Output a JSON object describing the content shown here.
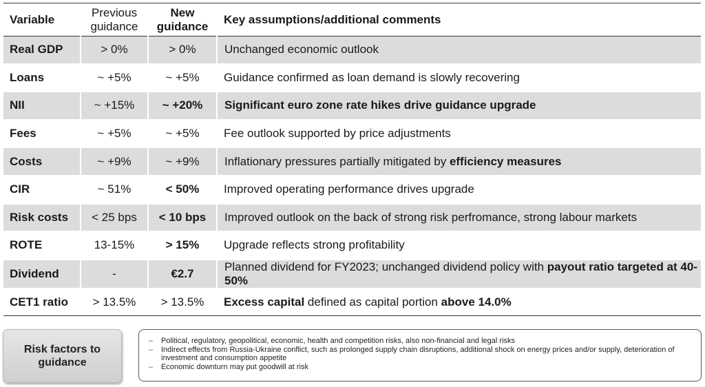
{
  "headers": {
    "variable": "Variable",
    "previous": "Previous guidance",
    "new": "New guidance",
    "comments": "Key assumptions/additional comments"
  },
  "rows": [
    {
      "variable": "Real GDP",
      "previous": "> 0%",
      "new": "> 0%",
      "comment_parts": [
        "Unchanged economic outlook"
      ]
    },
    {
      "variable": "Loans",
      "previous": "~ +5%",
      "new": "~ +5%",
      "comment_parts": [
        "Guidance confirmed as loan demand is slowly recovering"
      ]
    },
    {
      "variable": "NII",
      "previous": "~ +15%",
      "new": "~ +20%",
      "comment_parts": [
        "Significant euro zone rate hikes drive guidance upgrade"
      ]
    },
    {
      "variable": "Fees",
      "previous": "~ +5%",
      "new": "~ +5%",
      "comment_parts": [
        "Fee outlook supported by price adjustments"
      ]
    },
    {
      "variable": "Costs",
      "previous": "~ +9%",
      "new": "~ +9%",
      "comment_parts": [
        "Inflationary pressures partially mitigated by ",
        "efficiency measures"
      ]
    },
    {
      "variable": "CIR",
      "previous": "~ 51%",
      "new": "< 50%",
      "comment_parts": [
        "Improved operating performance drives upgrade"
      ]
    },
    {
      "variable": "Risk costs",
      "previous": "< 25 bps",
      "new": "< 10 bps",
      "comment_parts": [
        "Improved outlook on the back of strong risk perfromance, strong labour markets"
      ]
    },
    {
      "variable": "ROTE",
      "previous": "13-15%",
      "new": "> 15%",
      "comment_parts": [
        "Upgrade reflects strong profitability"
      ]
    },
    {
      "variable": "Dividend",
      "previous": "-",
      "new": "€2.7",
      "comment_parts": [
        "Planned dividend for FY2023; unchanged dividend policy with ",
        "payout ratio targeted at 40-50%"
      ]
    },
    {
      "variable": "CET1 ratio",
      "previous": "> 13.5%",
      "new": "> 13.5%",
      "comment_parts": [
        "Excess capital",
        " defined as capital portion ",
        "above 14.0%"
      ]
    }
  ],
  "risk": {
    "label": "Risk factors to guidance",
    "bullet_marker": "–",
    "items": [
      "Political, regulatory, geopolitical, economic, health and competition risks, also non-financial and legal risks",
      "Indirect effects from Russia-Ukraine conflict, such as prolonged supply chain disruptions, additional shock on energy prices and/or supply, deterioration of investment and consumption appetite",
      "Economic downturn may put goodwill at risk"
    ]
  }
}
